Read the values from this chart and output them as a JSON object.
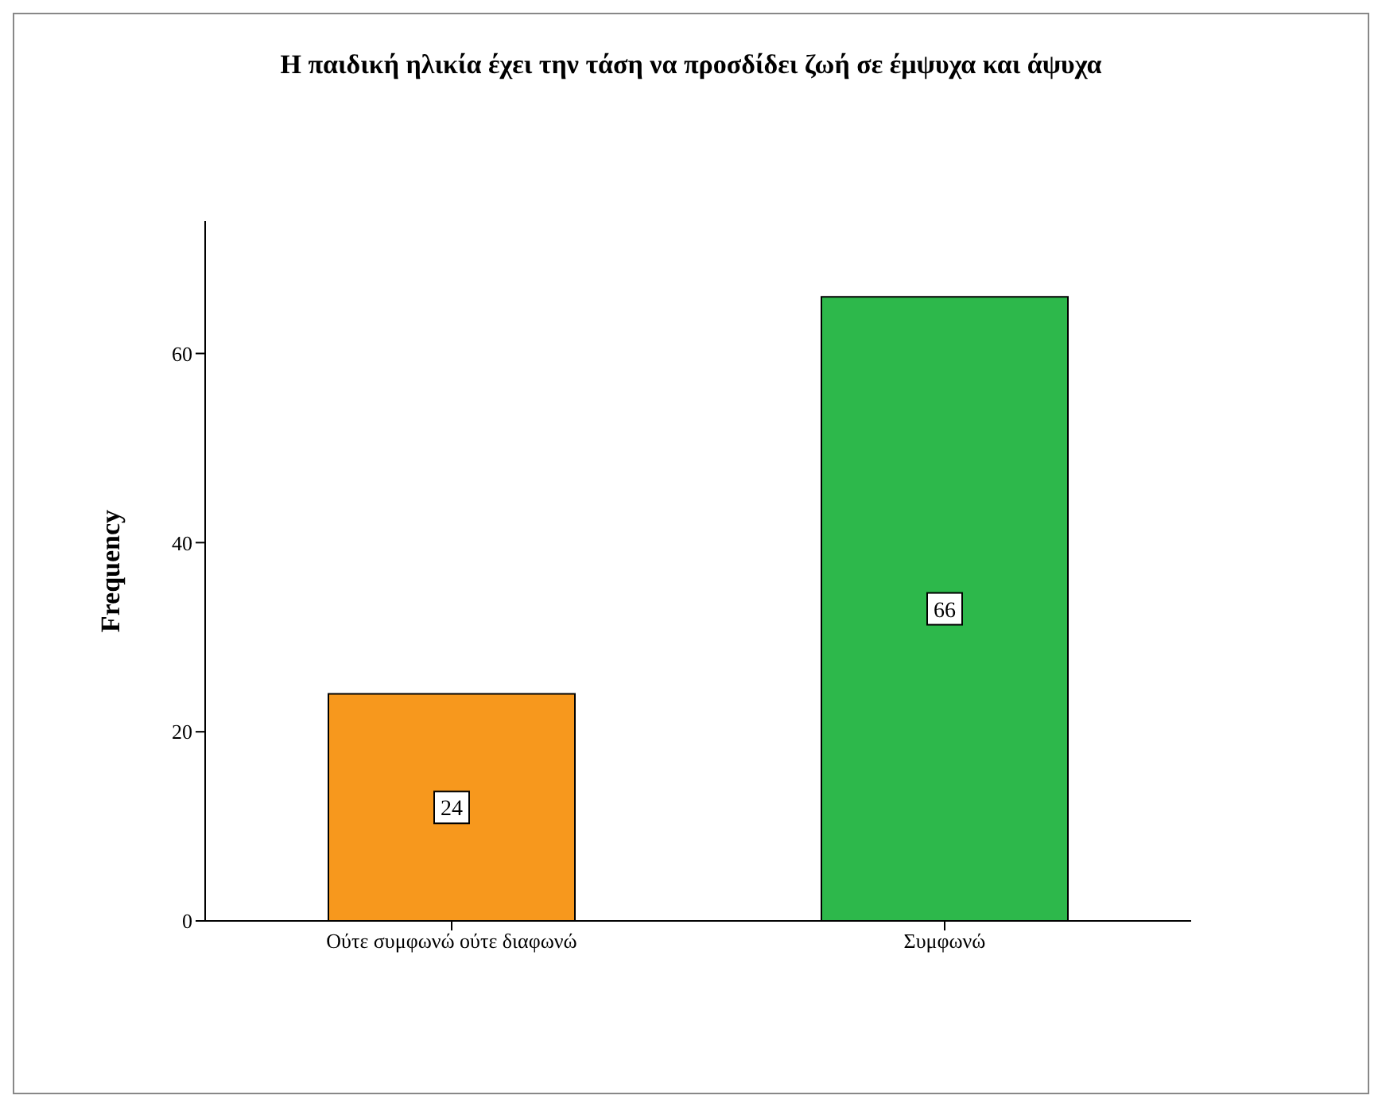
{
  "chart_data": {
    "type": "bar",
    "title": "Η παιδική ηλικία έχει την τάση να προσδίδει ζωή σε έμψυχα και άψυχα",
    "ylabel": "Frequency",
    "categories": [
      "Ούτε συμφωνώ ούτε διαφωνώ",
      "Συμφωνώ"
    ],
    "values": [
      24,
      66
    ],
    "colors": [
      "#f7981d",
      "#2db84b"
    ],
    "ylim": [
      0,
      74
    ],
    "yticks": [
      0,
      20,
      40,
      60
    ],
    "grid": false,
    "data_labels": true
  }
}
